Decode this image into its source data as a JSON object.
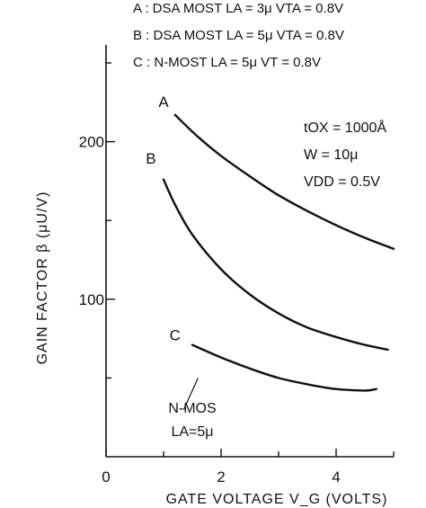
{
  "chart_data": {
    "type": "line",
    "xlabel": "GATE VOLTAGE V_G (VOLTS)",
    "ylabel": "GAIN FACTOR β (μU/V)",
    "xlim": [
      0,
      5
    ],
    "ylim": [
      0,
      250
    ],
    "xticks": [
      0,
      2,
      4
    ],
    "yticks": [
      100,
      200
    ],
    "legend": [
      {
        "key": "A",
        "text": "A : DSA MOST  LA = 3μ  VTA = 0.8V"
      },
      {
        "key": "B",
        "text": "B : DSA MOST  LA = 5μ  VTA = 0.8V"
      },
      {
        "key": "C",
        "text": "C : N-MOST    LA = 5μ  VT = 0.8V"
      }
    ],
    "parameters": [
      "tOX = 1000Å",
      "W = 10μ",
      "VDD = 0.5V"
    ],
    "series_labels": [
      "A",
      "B",
      "C"
    ],
    "curve_annotation": [
      "N-MOS",
      "LA=5μ"
    ],
    "series": [
      {
        "name": "A",
        "x": [
          1.2,
          1.6,
          2.0,
          2.5,
          3.0,
          3.5,
          4.0,
          4.5,
          5.0
        ],
        "y": [
          217,
          203,
          191,
          178,
          166,
          156,
          147,
          139,
          132
        ]
      },
      {
        "name": "B",
        "x": [
          1.0,
          1.2,
          1.5,
          2.0,
          2.5,
          3.0,
          3.5,
          4.0,
          4.5,
          4.9
        ],
        "y": [
          176,
          160,
          141,
          119,
          103,
          91,
          82,
          76,
          71,
          68
        ]
      },
      {
        "name": "C",
        "x": [
          1.5,
          2.0,
          2.5,
          3.0,
          3.5,
          4.0,
          4.5,
          4.7
        ],
        "y": [
          71,
          63,
          56,
          50,
          46,
          43,
          42,
          43
        ]
      }
    ]
  }
}
